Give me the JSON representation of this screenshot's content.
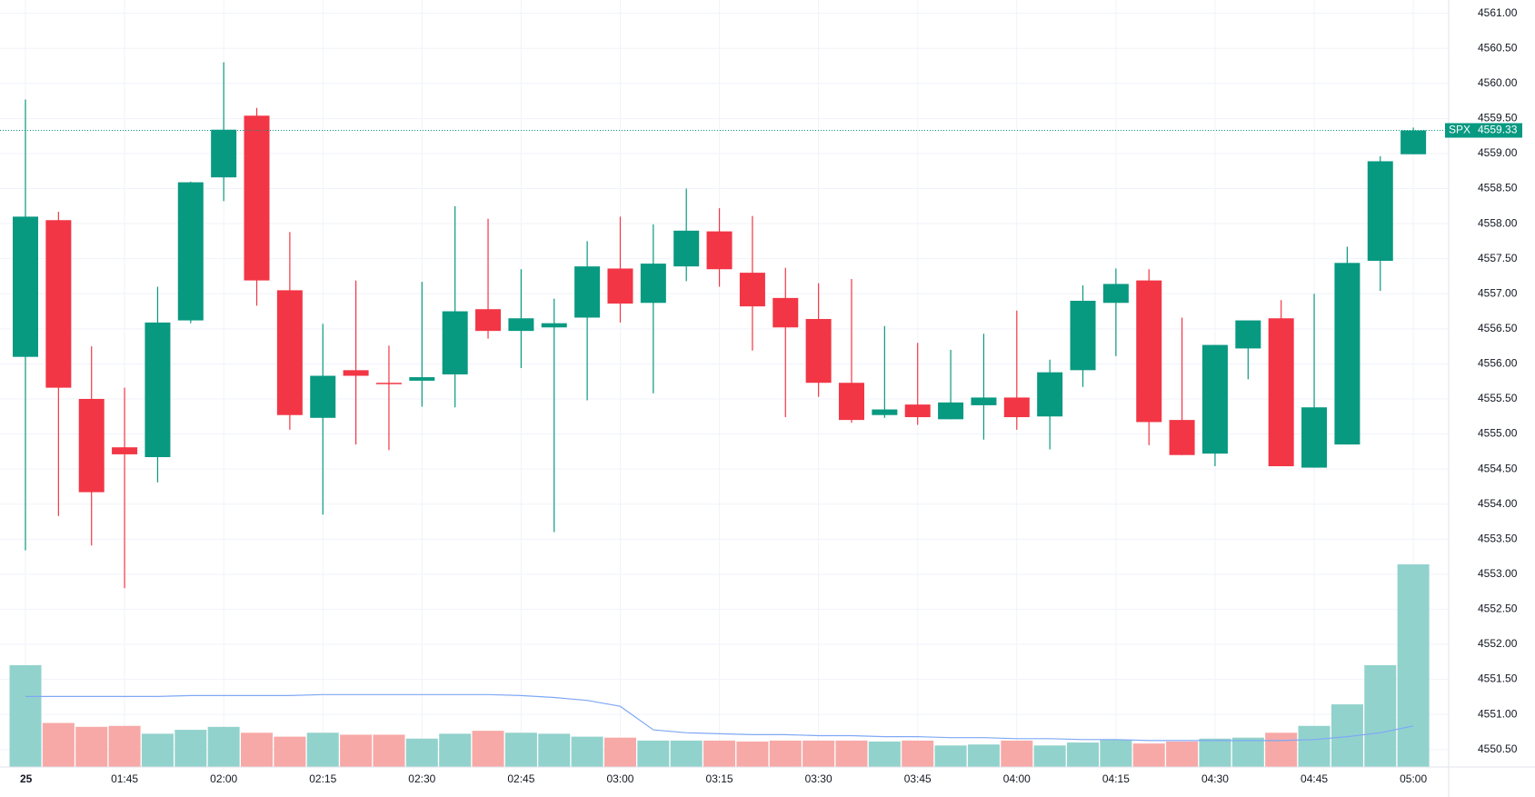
{
  "chart_data": {
    "type": "candlestick",
    "symbol": "SPX",
    "categories": [
      "25",
      null,
      null,
      "01:45",
      null,
      null,
      "02:00",
      null,
      null,
      "02:15",
      null,
      null,
      "02:30",
      null,
      null,
      "02:45",
      null,
      null,
      "03:00",
      null,
      null,
      "03:15",
      null,
      null,
      "03:30",
      null,
      null,
      "03:45",
      null,
      null,
      "04:00",
      null,
      null,
      "04:15",
      null,
      null,
      "04:30",
      null,
      null,
      "04:45",
      null,
      null,
      "05:00"
    ],
    "open": [
      4556.1,
      4558.05,
      4555.5,
      4554.81,
      4554.67,
      4556.62,
      4558.66,
      4559.54,
      4557.05,
      4555.23,
      4555.91,
      4555.73,
      4555.76,
      4555.85,
      4556.78,
      4556.47,
      4556.52,
      4556.66,
      4557.36,
      4556.87,
      4557.39,
      4557.89,
      4557.3,
      4556.94,
      4556.64,
      4555.73,
      4555.27,
      4555.42,
      4555.21,
      4555.41,
      4555.52,
      4555.25,
      4555.91,
      4556.87,
      4557.19,
      4555.2,
      4554.72,
      4556.22,
      4556.65,
      4554.52,
      4554.85,
      4557.47,
      4558.99
    ],
    "high": [
      4559.77,
      4558.17,
      4556.25,
      4555.66,
      4557.1,
      4558.6,
      4560.3,
      4559.65,
      4557.88,
      4556.57,
      4557.19,
      4556.26,
      4557.17,
      4558.25,
      4558.07,
      4557.35,
      4556.93,
      4557.75,
      4558.1,
      4557.99,
      4558.5,
      4558.22,
      4558.11,
      4557.37,
      4557.15,
      4557.21,
      4556.54,
      4556.3,
      4556.2,
      4556.43,
      4556.76,
      4556.06,
      4557.12,
      4557.36,
      4557.35,
      4556.66,
      4556.27,
      4556.62,
      4556.91,
      4557.0,
      4557.67,
      4558.96,
      4559.37
    ],
    "low": [
      4553.34,
      4553.83,
      4553.41,
      4552.8,
      4554.31,
      4556.58,
      4558.32,
      4556.83,
      4555.06,
      4553.85,
      4554.85,
      4554.77,
      4555.39,
      4555.38,
      4556.36,
      4555.94,
      4553.6,
      4555.48,
      4556.59,
      4555.58,
      4557.18,
      4557.1,
      4556.19,
      4555.24,
      4555.53,
      4555.16,
      4555.23,
      4555.13,
      4555.21,
      4554.92,
      4555.06,
      4554.78,
      4555.67,
      4556.11,
      4554.84,
      4554.7,
      4554.54,
      4555.78,
      4554.54,
      4554.52,
      4554.85,
      4557.04,
      4558.99
    ],
    "close": [
      4558.1,
      4555.66,
      4554.17,
      4554.71,
      4556.59,
      4558.59,
      4559.34,
      4557.19,
      4555.27,
      4555.83,
      4555.83,
      4555.72,
      4555.81,
      4556.75,
      4556.47,
      4556.65,
      4556.58,
      4557.39,
      4556.86,
      4557.43,
      4557.9,
      4557.35,
      4556.82,
      4556.52,
      4555.73,
      4555.2,
      4555.35,
      4555.24,
      4555.45,
      4555.52,
      4555.24,
      4555.88,
      4556.9,
      4557.14,
      4555.17,
      4554.7,
      4556.27,
      4556.62,
      4554.54,
      4555.38,
      4557.44,
      4558.89,
      4559.33
    ],
    "volume": [
      104,
      45,
      41,
      42,
      34,
      38,
      41,
      35,
      31,
      35,
      33,
      33,
      29,
      34,
      37,
      35,
      34,
      31,
      30,
      27,
      27,
      27,
      26,
      27,
      27,
      27,
      26,
      27,
      22,
      23,
      27,
      22,
      25,
      28,
      24,
      26,
      29,
      30,
      35,
      42,
      64,
      104,
      207
    ],
    "volume_ma": [
      72,
      72,
      72,
      72,
      72,
      73,
      73,
      73,
      73,
      74,
      74,
      74,
      74,
      74,
      74,
      73,
      71,
      68,
      62,
      38,
      35,
      34,
      33,
      33,
      32,
      32,
      31,
      31,
      30,
      30,
      29,
      29,
      28,
      28,
      27,
      27,
      27,
      27,
      27,
      28,
      31,
      35,
      42
    ],
    "ylim": [
      4550.25,
      4561.19
    ],
    "yticks": [
      {
        "value": 4550.5,
        "label": "4550.50"
      },
      {
        "value": 4551,
        "label": "4551.00"
      },
      {
        "value": 4551.5,
        "label": "4551.50"
      },
      {
        "value": 4552,
        "label": "4552.00"
      },
      {
        "value": 4552.5,
        "label": "4552.50"
      },
      {
        "value": 4553,
        "label": "4553.00"
      },
      {
        "value": 4553.5,
        "label": "4553.50"
      },
      {
        "value": 4554,
        "label": "4554.00"
      },
      {
        "value": 4554.5,
        "label": "4554.50"
      },
      {
        "value": 4555,
        "label": "4555.00"
      },
      {
        "value": 4555.5,
        "label": "4555.50"
      },
      {
        "value": 4556,
        "label": "4556.00"
      },
      {
        "value": 4556.5,
        "label": "4556.50"
      },
      {
        "value": 4557,
        "label": "4557.00"
      },
      {
        "value": 4557.5,
        "label": "4557.50"
      },
      {
        "value": 4558,
        "label": "4558.00"
      },
      {
        "value": 4558.5,
        "label": "4558.50"
      },
      {
        "value": 4559,
        "label": "4559.00"
      },
      {
        "value": 4559.5,
        "label": "4559.50"
      },
      {
        "value": 4560,
        "label": "4560.00"
      },
      {
        "value": 4560.5,
        "label": "4560.50"
      },
      {
        "value": 4561,
        "label": "4561.00"
      }
    ],
    "last_price": {
      "value": 4559.33,
      "label": "4559.33"
    },
    "grid": true,
    "up_color": "#089981",
    "down_color": "#f23645",
    "up_volume_color": "#92d2cc",
    "down_volume_color": "#f7a9a7",
    "ma_color": "#7fa8f5"
  }
}
